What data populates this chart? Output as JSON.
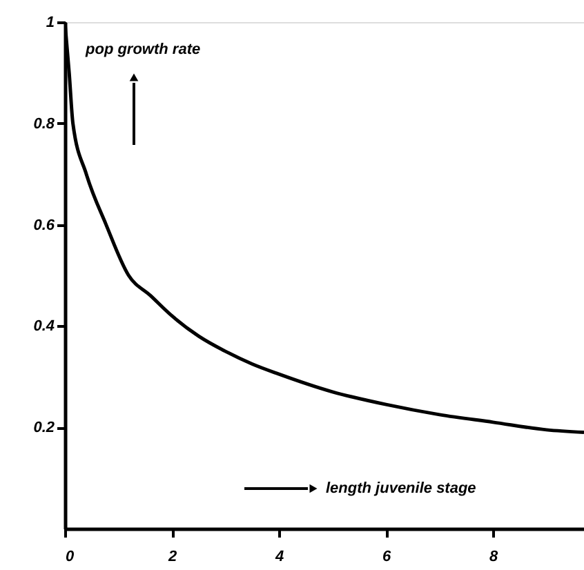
{
  "chart_data": {
    "type": "line",
    "x": [
      0,
      0.08,
      0.15,
      0.4,
      0.77,
      1.19,
      1.6,
      2,
      2.5,
      3,
      3.5,
      4,
      5,
      6,
      7,
      8,
      9,
      9.7
    ],
    "series": [
      {
        "color": "#000000",
        "values": [
          1,
          0.9,
          0.8,
          0.7,
          0.6,
          0.5,
          0.46,
          0.42,
          0.38,
          0.35,
          0.325,
          0.305,
          0.27,
          0.245,
          0.225,
          0.21,
          0.195,
          0.19
        ]
      }
    ],
    "xlim": [
      0,
      9.7
    ],
    "ylim": [
      0,
      1
    ],
    "xticks": [
      0,
      2,
      4,
      6,
      8
    ],
    "yticks": [
      0.2,
      0.4,
      0.6,
      0.8,
      1
    ],
    "annotations": [
      "pop growth rate",
      "length juvenile stage"
    ],
    "grid": false,
    "marker": "none",
    "line_style": "solid"
  }
}
